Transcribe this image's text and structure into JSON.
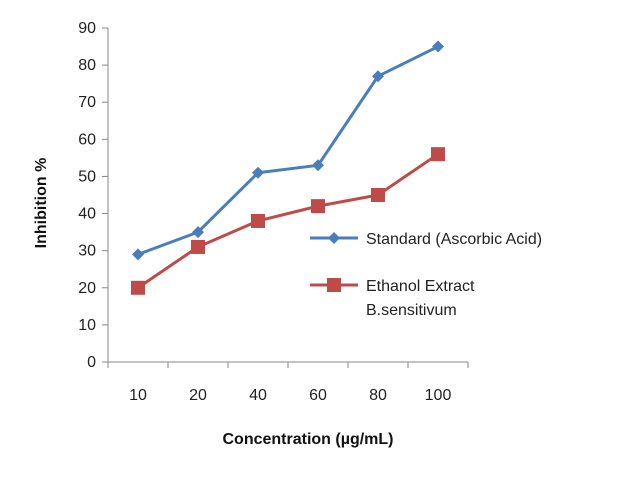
{
  "chart_data": {
    "type": "line",
    "title": "",
    "xlabel": "Concentration (µg/mL)",
    "ylabel": "Inhibition %",
    "categories": [
      "10",
      "20",
      "40",
      "60",
      "80",
      "100"
    ],
    "ylim": [
      0,
      90
    ],
    "yticks": [
      "0",
      "10",
      "20",
      "30",
      "40",
      "50",
      "60",
      "70",
      "80",
      "90"
    ],
    "grid": false,
    "legend_position": "right",
    "series": [
      {
        "name": "Standard (Ascorbic Acid)",
        "values": [
          29,
          35,
          51,
          53,
          77,
          85
        ],
        "color": "#4a7ebb",
        "marker": "diamond"
      },
      {
        "name": "Ethanol Extract B.sensitivum",
        "legend_lines": [
          "Ethanol Extract",
          "B.sensitivum"
        ],
        "values": [
          20,
          31,
          38,
          42,
          45,
          56
        ],
        "color": "#be4b48",
        "marker": "square"
      }
    ]
  }
}
